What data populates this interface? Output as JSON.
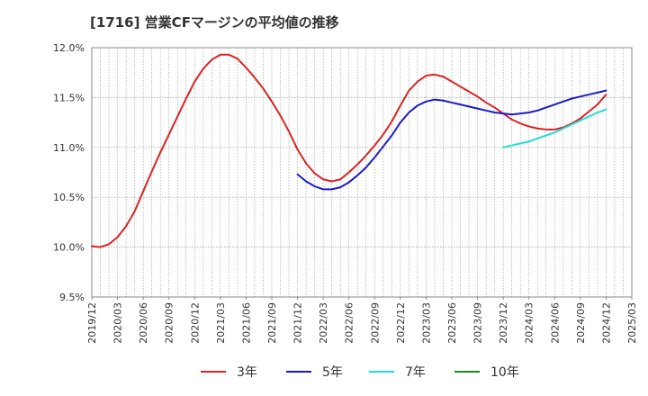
{
  "chart_data": {
    "type": "line",
    "title": "[1716]  営業CFマージンの平均値の推移",
    "xlabel": "",
    "ylabel": "",
    "x_ticks": [
      "2019/12",
      "2020/03",
      "2020/06",
      "2020/09",
      "2020/12",
      "2021/03",
      "2021/06",
      "2021/09",
      "2021/12",
      "2022/03",
      "2022/06",
      "2022/09",
      "2022/12",
      "2023/03",
      "2023/06",
      "2023/09",
      "2023/12",
      "2024/03",
      "2024/06",
      "2024/09",
      "2024/12",
      "2025/03"
    ],
    "y_ticks": [
      "9.5%",
      "10.0%",
      "10.5%",
      "11.0%",
      "11.5%",
      "12.0%"
    ],
    "ylim": [
      9.5,
      12.0
    ],
    "grid": true,
    "legend_position": "bottom",
    "series": [
      {
        "name": "3年",
        "color": "#dd2222",
        "x": [
          "2019/12",
          "2020/01",
          "2020/02",
          "2020/03",
          "2020/04",
          "2020/05",
          "2020/06",
          "2020/07",
          "2020/08",
          "2020/09",
          "2020/10",
          "2020/11",
          "2020/12",
          "2021/01",
          "2021/02",
          "2021/03",
          "2021/04",
          "2021/05",
          "2021/06",
          "2021/07",
          "2021/08",
          "2021/09",
          "2021/10",
          "2021/11",
          "2021/12",
          "2022/01",
          "2022/02",
          "2022/03",
          "2022/04",
          "2022/05",
          "2022/06",
          "2022/07",
          "2022/08",
          "2022/09",
          "2022/10",
          "2022/11",
          "2022/12",
          "2023/01",
          "2023/02",
          "2023/03",
          "2023/04",
          "2023/05",
          "2023/06",
          "2023/07",
          "2023/08",
          "2023/09",
          "2023/10",
          "2023/11",
          "2023/12",
          "2024/01",
          "2024/02",
          "2024/03",
          "2024/04",
          "2024/05",
          "2024/06",
          "2024/07",
          "2024/08",
          "2024/09",
          "2024/10",
          "2024/11",
          "2024/12"
        ],
        "values": [
          10.01,
          10.0,
          10.03,
          10.1,
          10.21,
          10.36,
          10.56,
          10.76,
          10.95,
          11.13,
          11.31,
          11.49,
          11.66,
          11.79,
          11.88,
          11.93,
          11.93,
          11.89,
          11.8,
          11.7,
          11.59,
          11.46,
          11.32,
          11.16,
          10.98,
          10.84,
          10.74,
          10.68,
          10.66,
          10.68,
          10.75,
          10.83,
          10.92,
          11.02,
          11.13,
          11.26,
          11.42,
          11.57,
          11.66,
          11.72,
          11.73,
          11.71,
          11.66,
          11.61,
          11.56,
          11.51,
          11.45,
          11.4,
          11.34,
          11.28,
          11.24,
          11.21,
          11.19,
          11.18,
          11.18,
          11.2,
          11.24,
          11.29,
          11.36,
          11.43,
          11.53
        ]
      },
      {
        "name": "5年",
        "color": "#1a1acc",
        "x": [
          "2021/12",
          "2022/01",
          "2022/02",
          "2022/03",
          "2022/04",
          "2022/05",
          "2022/06",
          "2022/07",
          "2022/08",
          "2022/09",
          "2022/10",
          "2022/11",
          "2022/12",
          "2023/01",
          "2023/02",
          "2023/03",
          "2023/04",
          "2023/05",
          "2023/06",
          "2023/07",
          "2023/08",
          "2023/09",
          "2023/10",
          "2023/11",
          "2023/12",
          "2024/01",
          "2024/02",
          "2024/03",
          "2024/04",
          "2024/05",
          "2024/06",
          "2024/07",
          "2024/08",
          "2024/09",
          "2024/10",
          "2024/11",
          "2024/12"
        ],
        "values": [
          10.73,
          10.66,
          10.61,
          10.58,
          10.58,
          10.6,
          10.65,
          10.72,
          10.8,
          10.9,
          11.01,
          11.12,
          11.25,
          11.35,
          11.42,
          11.46,
          11.48,
          11.47,
          11.45,
          11.43,
          11.41,
          11.39,
          11.37,
          11.35,
          11.34,
          11.33,
          11.34,
          11.35,
          11.37,
          11.4,
          11.43,
          11.46,
          11.49,
          11.51,
          11.53,
          11.55,
          11.57
        ]
      },
      {
        "name": "7年",
        "color": "#22dddd",
        "x": [
          "2023/12",
          "2024/01",
          "2024/02",
          "2024/03",
          "2024/04",
          "2024/05",
          "2024/06",
          "2024/07",
          "2024/08",
          "2024/09",
          "2024/10",
          "2024/11",
          "2024/12"
        ],
        "values": [
          11.0,
          11.02,
          11.04,
          11.06,
          11.09,
          11.12,
          11.15,
          11.19,
          11.23,
          11.27,
          11.31,
          11.35,
          11.38
        ]
      },
      {
        "name": "10年",
        "color": "#228822",
        "x": [],
        "values": []
      }
    ]
  }
}
